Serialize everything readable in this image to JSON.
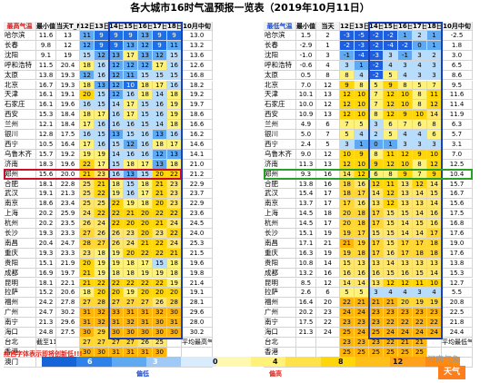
{
  "title": "各大城市16时气温预报一览表（2019年10月11日）",
  "left_table": {
    "headers": [
      "最高气温",
      "最小值",
      "当天T_Max",
      "12日",
      "13日",
      "14日",
      "15日",
      "16日",
      "17日",
      "18日",
      "10月中旬"
    ],
    "sub_note": "截至11日",
    "avg_label": "平均最高气温",
    "rows": [
      {
        "city": "哈尔滨",
        "min": "11.6",
        "today": "13",
        "v": [
          "11",
          "9",
          "9",
          "9",
          "13",
          "9",
          "9"
        ],
        "avg": "13.0"
      },
      {
        "city": "长春",
        "min": "9.8",
        "today": "12",
        "v": [
          "12",
          "9",
          "9",
          "13",
          "12",
          "9",
          "11"
        ],
        "avg": "13.2"
      },
      {
        "city": "沈阳",
        "min": "9.1",
        "today": "19",
        "v": [
          "15",
          "12",
          "13",
          "17",
          "13",
          "12",
          "15"
        ],
        "avg": "13.6"
      },
      {
        "city": "呼和浩特",
        "min": "11.5",
        "today": "20.4",
        "v": [
          "18",
          "16",
          "12",
          "12",
          "12",
          "17",
          "16"
        ],
        "avg": "12.6"
      },
      {
        "city": "太原",
        "min": "13.8",
        "today": "19.3",
        "v": [
          "12",
          "16",
          "12",
          "11",
          "15",
          "15",
          "15"
        ],
        "avg": "16.8"
      },
      {
        "city": "北京",
        "min": "16.7",
        "today": "19.3",
        "v": [
          "18",
          "13",
          "12",
          "10",
          "18",
          "17",
          "16"
        ],
        "avg": "18.2"
      },
      {
        "city": "天津",
        "min": "16.1",
        "today": "19.1",
        "v": [
          "20",
          "15",
          "12",
          "16",
          "18",
          "14",
          "18"
        ],
        "avg": "19.2"
      },
      {
        "city": "石家庄",
        "min": "16.1",
        "today": "19.6",
        "v": [
          "16",
          "15",
          "14",
          "17",
          "15",
          "16",
          "19"
        ],
        "avg": "19.7"
      },
      {
        "city": "西安",
        "min": "15.3",
        "today": "18.4",
        "v": [
          "18",
          "17",
          "16",
          "17",
          "15",
          "16",
          "19"
        ],
        "avg": "18.6"
      },
      {
        "city": "兰州",
        "min": "12.1",
        "today": "18.4",
        "v": [
          "17",
          "16",
          "16",
          "16",
          "15",
          "14",
          "18"
        ],
        "avg": "16.6"
      },
      {
        "city": "银川",
        "min": "12.8",
        "today": "17.5",
        "v": [
          "16",
          "15",
          "13",
          "15",
          "16",
          "13",
          "16"
        ],
        "avg": "16.2"
      },
      {
        "city": "西宁",
        "min": "10.5",
        "today": "16.4",
        "v": [
          "17",
          "16",
          "15",
          "12",
          "16",
          "18",
          "17"
        ],
        "avg": "14.6"
      },
      {
        "city": "乌鲁木齐",
        "min": "15.7",
        "today": "19.2",
        "v": [
          "19",
          "19",
          "14",
          "16",
          "16",
          "12",
          "13"
        ],
        "avg": "14.1"
      },
      {
        "city": "济南",
        "min": "18.3",
        "today": "19.6",
        "v": [
          "22",
          "17",
          "15",
          "18",
          "17",
          "13",
          "18"
        ],
        "avg": "21.0"
      },
      {
        "city": "郑州",
        "min": "15.6",
        "today": "20.0",
        "v": [
          "21",
          "23",
          "16",
          "13",
          "15",
          "20",
          "22"
        ],
        "avg": "21.2"
      },
      {
        "city": "合肥",
        "min": "18.1",
        "today": "22.8",
        "v": [
          "25",
          "21",
          "18",
          "15",
          "18",
          "21",
          "23"
        ],
        "avg": "22.9"
      },
      {
        "city": "武汉",
        "min": "19.1",
        "today": "21.3",
        "v": [
          "25",
          "22",
          "19",
          "16",
          "17",
          "21",
          "23"
        ],
        "avg": "23.7"
      },
      {
        "city": "南京",
        "min": "18.6",
        "today": "23.4",
        "v": [
          "25",
          "25",
          "22",
          "19",
          "18",
          "20",
          "23"
        ],
        "avg": "22.9"
      },
      {
        "city": "上海",
        "min": "20.2",
        "today": "25.9",
        "v": [
          "24",
          "22",
          "22",
          "21",
          "20",
          "22",
          "22"
        ],
        "avg": "23.6"
      },
      {
        "city": "杭州",
        "min": "20.2",
        "today": "23.5",
        "v": [
          "26",
          "24",
          "22",
          "20",
          "20",
          "21",
          "24"
        ],
        "avg": "24.5"
      },
      {
        "city": "长沙",
        "min": "19.3",
        "today": "23.3",
        "v": [
          "27",
          "26",
          "26",
          "23",
          "20",
          "23",
          "22"
        ],
        "avg": "24.0"
      },
      {
        "city": "南昌",
        "min": "20.4",
        "today": "24.7",
        "v": [
          "28",
          "27",
          "26",
          "24",
          "21",
          "22",
          "24"
        ],
        "avg": "25.3"
      },
      {
        "city": "重庆",
        "min": "19.3",
        "today": "23.3",
        "v": [
          "23",
          "18",
          "19",
          "20",
          "22",
          "22",
          "21"
        ],
        "avg": "21.5"
      },
      {
        "city": "贵阳",
        "min": "15.1",
        "today": "21.9",
        "v": [
          "20",
          "19",
          "19",
          "18",
          "17",
          "15",
          "18"
        ],
        "avg": "19.6"
      },
      {
        "city": "成都",
        "min": "16.9",
        "today": "19.7",
        "v": [
          "21",
          "19",
          "18",
          "18",
          "19",
          "19",
          "18"
        ],
        "avg": "19.8"
      },
      {
        "city": "昆明",
        "min": "18.1",
        "today": "22.1",
        "v": [
          "21",
          "22",
          "22",
          "22",
          "22",
          "22",
          "19"
        ],
        "avg": "21.4"
      },
      {
        "city": "拉萨",
        "min": "15.2",
        "today": "20.6",
        "v": [
          "18",
          "20",
          "20",
          "19",
          "20",
          "20",
          "20"
        ],
        "avg": "19.1"
      },
      {
        "city": "福州",
        "min": "24.2",
        "today": "27.8",
        "v": [
          "27",
          "28",
          "27",
          "27",
          "27",
          "26",
          "28"
        ],
        "avg": "28.1"
      },
      {
        "city": "广州",
        "min": "24.7",
        "today": "30.2",
        "v": [
          "31",
          "32",
          "33",
          "31",
          "31",
          "32",
          "30"
        ],
        "avg": "29.6"
      },
      {
        "city": "南宁",
        "min": "21.3",
        "today": "29.6",
        "v": [
          "31",
          "32",
          "31",
          "32",
          "31",
          "30",
          "31"
        ],
        "avg": "28.0"
      },
      {
        "city": "海口",
        "min": "24.8",
        "today": "27.5",
        "v": [
          "30",
          "29",
          "30",
          "30",
          "30",
          "30",
          "30"
        ],
        "avg": "30.2"
      },
      {
        "city": "台北",
        "min": "截至11日",
        "today": "",
        "v": [
          "27",
          "27",
          "27",
          "27",
          "26",
          "25",
          ""
        ],
        "avg": "平均最高气温"
      },
      {
        "city": "香港",
        "min": "",
        "today": "",
        "v": [
          "30",
          "30",
          "31",
          "31",
          "31",
          "30",
          ""
        ],
        "avg": ""
      },
      {
        "city": "澳门",
        "min": "",
        "today": "",
        "v": [
          "30",
          "30",
          "31",
          "31",
          "31",
          "30",
          ""
        ],
        "avg": ""
      }
    ]
  },
  "right_table": {
    "headers": [
      "最低气温",
      "最小值",
      "当天",
      "12日",
      "13日",
      "14日",
      "15日",
      "16日",
      "17日",
      "18日",
      "10月中旬"
    ],
    "avg_label": "平均最低气温",
    "rows": [
      {
        "city": "哈尔滨",
        "min": "1.5",
        "today": "2",
        "v": [
          "-3",
          "-5",
          "-2",
          "-2",
          "1",
          "2",
          "1"
        ],
        "avg": "-2.5"
      },
      {
        "city": "长春",
        "min": "-2.9",
        "today": "1",
        "v": [
          "-2",
          "-3",
          "-2",
          "-4",
          "-2",
          "0",
          "1"
        ],
        "avg": "1.8"
      },
      {
        "city": "沈阳",
        "min": "-1.0",
        "today": "3",
        "v": [
          "-1",
          "-4",
          "-3",
          "3",
          "-1",
          "3",
          "2"
        ],
        "avg": "3.0"
      },
      {
        "city": "呼和浩特",
        "min": "-0.6",
        "today": "4",
        "v": [
          "3",
          "1",
          "-2",
          "4",
          "3",
          "4",
          "3"
        ],
        "avg": "6.5"
      },
      {
        "city": "太原",
        "min": "0.5",
        "today": "8",
        "v": [
          "8",
          "4",
          "-2",
          "5",
          "4",
          "3",
          "3"
        ],
        "avg": "8.6"
      },
      {
        "city": "北京",
        "min": "7.0",
        "today": "12",
        "v": [
          "9",
          "8",
          "5",
          "9",
          "8",
          "5",
          "7"
        ],
        "avg": "9.5"
      },
      {
        "city": "天津",
        "min": "10.1",
        "today": "13",
        "v": [
          "12",
          "10",
          "7",
          "12",
          "10",
          "8",
          "11"
        ],
        "avg": "11.6"
      },
      {
        "city": "石家庄",
        "min": "10.0",
        "today": "12",
        "v": [
          "12",
          "10",
          "7",
          "12",
          "10",
          "8",
          "12"
        ],
        "avg": "11.4"
      },
      {
        "city": "西安",
        "min": "10.9",
        "today": "13",
        "v": [
          "12",
          "10",
          "8",
          "12",
          "9",
          "10",
          "14"
        ],
        "avg": "11.9"
      },
      {
        "city": "兰州",
        "min": "4.9",
        "today": "6",
        "v": [
          "7",
          "5",
          "3",
          "6",
          "7",
          "6",
          "8"
        ],
        "avg": "6.3"
      },
      {
        "city": "银川",
        "min": "5.0",
        "today": "7",
        "v": [
          "5",
          "4",
          "2",
          "5",
          "4",
          "4",
          "6"
        ],
        "avg": "5.7"
      },
      {
        "city": "西宁",
        "min": "2.4",
        "today": "5",
        "v": [
          "3",
          "1",
          "0",
          "1",
          "3",
          "3",
          "3"
        ],
        "avg": "3.1"
      },
      {
        "city": "乌鲁木齐",
        "min": "9.0",
        "today": "12",
        "v": [
          "10",
          "9",
          "8",
          "11",
          "12",
          "9",
          "10"
        ],
        "avg": "7.0"
      },
      {
        "city": "济南",
        "min": "11.3",
        "today": "13",
        "v": [
          "12",
          "10",
          "9",
          "12",
          "10",
          "8",
          "12"
        ],
        "avg": "12.5"
      },
      {
        "city": "郑州",
        "min": "9.3",
        "today": "16",
        "v": [
          "14",
          "12",
          "6",
          "8",
          "9",
          "7",
          "9"
        ],
        "avg": "10.4"
      },
      {
        "city": "合肥",
        "min": "13.8",
        "today": "16",
        "v": [
          "18",
          "16",
          "12",
          "11",
          "13",
          "12",
          "14"
        ],
        "avg": "15.7"
      },
      {
        "city": "武汉",
        "min": "15.4",
        "today": "17",
        "v": [
          "18",
          "17",
          "14",
          "12",
          "13",
          "14",
          "15"
        ],
        "avg": "16.7"
      },
      {
        "city": "南京",
        "min": "13.7",
        "today": "17",
        "v": [
          "17",
          "16",
          "13",
          "12",
          "13",
          "13",
          "14"
        ],
        "avg": "15.6"
      },
      {
        "city": "上海",
        "min": "14.5",
        "today": "18",
        "v": [
          "20",
          "18",
          "17",
          "15",
          "15",
          "14",
          "16"
        ],
        "avg": "17.5"
      },
      {
        "city": "杭州",
        "min": "14.5",
        "today": "17",
        "v": [
          "20",
          "18",
          "17",
          "15",
          "14",
          "15",
          "16"
        ],
        "avg": "16.8"
      },
      {
        "city": "长沙",
        "min": "15.1",
        "today": "19",
        "v": [
          "19",
          "17",
          "15",
          "15",
          "14",
          "14",
          "17"
        ],
        "avg": "17.6"
      },
      {
        "city": "南昌",
        "min": "17.1",
        "today": "21",
        "v": [
          "21",
          "19",
          "17",
          "15",
          "17",
          "17",
          "18"
        ],
        "avg": "19.0"
      },
      {
        "city": "重庆",
        "min": "16.3",
        "today": "19",
        "v": [
          "19",
          "18",
          "17",
          "16",
          "17",
          "18",
          "18"
        ],
        "avg": "17.6"
      },
      {
        "city": "贵阳",
        "min": "10.8",
        "today": "14",
        "v": [
          "15",
          "13",
          "13",
          "14",
          "13",
          "13",
          "13"
        ],
        "avg": "13.8"
      },
      {
        "city": "成都",
        "min": "13.2",
        "today": "16",
        "v": [
          "16",
          "16",
          "16",
          "15",
          "16",
          "15",
          "14"
        ],
        "avg": "15.3"
      },
      {
        "city": "昆明",
        "min": "8.5",
        "today": "12",
        "v": [
          "14",
          "14",
          "13",
          "12",
          "12",
          "11",
          "10"
        ],
        "avg": "12.7"
      },
      {
        "city": "拉萨",
        "min": "2.6",
        "today": "6",
        "v": [
          "5",
          "5",
          "3",
          "4",
          "4",
          "3",
          "4"
        ],
        "avg": "5.5"
      },
      {
        "city": "福州",
        "min": "16.4",
        "today": "20",
        "v": [
          "22",
          "21",
          "21",
          "21",
          "20",
          "19",
          "19"
        ],
        "avg": "20.8"
      },
      {
        "city": "广州",
        "min": "20.2",
        "today": "23",
        "v": [
          "24",
          "24",
          "23",
          "23",
          "23",
          "23",
          "23"
        ],
        "avg": "22.5"
      },
      {
        "city": "南宁",
        "min": "17.5",
        "today": "22",
        "v": [
          "23",
          "23",
          "23",
          "22",
          "22",
          "22",
          "22"
        ],
        "avg": "21.8"
      },
      {
        "city": "海口",
        "min": "21.3",
        "today": "24",
        "v": [
          "25",
          "24",
          "25",
          "24",
          "24",
          "24",
          "24"
        ],
        "avg": "24.4"
      },
      {
        "city": "台北",
        "min": "",
        "today": "",
        "v": [
          "23",
          "23",
          "23",
          "22",
          "21",
          "21",
          ""
        ],
        "avg": "平均最低气温"
      },
      {
        "city": "香港",
        "min": "",
        "today": "",
        "v": [
          "25",
          "25",
          "25",
          "25",
          "25",
          "25",
          ""
        ],
        "avg": ""
      },
      {
        "city": "澳门",
        "min": "",
        "today": "",
        "v": [
          "25",
          "24",
          "25",
          "24",
          "24",
          "23",
          ""
        ],
        "avg": ""
      }
    ]
  },
  "footnote": "红色字体表示即将创新低!!!",
  "legend": {
    "ticks": [
      "6",
      "3",
      "0",
      "4",
      "8",
      "12"
    ],
    "low_label": "偏低",
    "high_label": "偏高",
    "weather_label": "天气"
  },
  "watermark": "河南气象",
  "colors": {
    "header_red": "#d21e1e",
    "header_blue": "#1f4fd0",
    "box_blue": "#1a3fb8",
    "box_red": "#c8102e",
    "box_green": "#2a9d2a",
    "weather_orange": "#ff7e1a"
  }
}
